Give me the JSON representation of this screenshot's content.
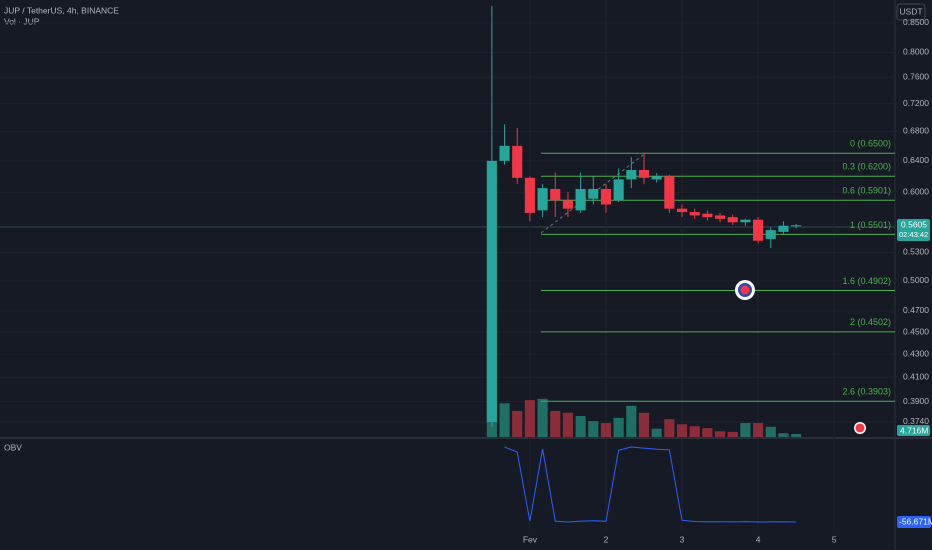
{
  "chart_data": {
    "type": "candlestick",
    "title": "JUP / TetherUS, 4h, BINANCE",
    "volume_label": "Vol · JUP",
    "currency_button": "USDT",
    "price_label": "0.5605",
    "countdown": "02:43:42",
    "log_scale": true,
    "up_color": "#26a69a",
    "down_color": "#f23645",
    "open": [
      0.374,
      0.64,
      0.66,
      0.618,
      0.578,
      0.604,
      0.59,
      0.578,
      0.592,
      0.604,
      0.59,
      0.616,
      0.628,
      0.616,
      0.62,
      0.58,
      0.576,
      0.574,
      0.572,
      0.57,
      0.564,
      0.567,
      0.545,
      0.553,
      0.5595
    ],
    "high": [
      0.88,
      0.69,
      0.685,
      0.62,
      0.61,
      0.625,
      0.6,
      0.625,
      0.62,
      0.61,
      0.63,
      0.645,
      0.65,
      0.624,
      0.622,
      0.585,
      0.58,
      0.578,
      0.575,
      0.573,
      0.568,
      0.57,
      0.558,
      0.565,
      0.562
    ],
    "low": [
      0.37,
      0.635,
      0.61,
      0.565,
      0.57,
      0.57,
      0.57,
      0.575,
      0.585,
      0.575,
      0.588,
      0.605,
      0.61,
      0.612,
      0.575,
      0.57,
      0.568,
      0.566,
      0.564,
      0.561,
      0.56,
      0.54,
      0.535,
      0.55,
      0.557
    ],
    "close": [
      0.64,
      0.66,
      0.618,
      0.575,
      0.605,
      0.59,
      0.58,
      0.604,
      0.604,
      0.585,
      0.616,
      0.628,
      0.618,
      0.62,
      0.58,
      0.576,
      0.572,
      0.57,
      0.568,
      0.564,
      0.567,
      0.543,
      0.555,
      0.56,
      0.5605
    ],
    "xlim": [
      -38.8,
      31.8
    ],
    "ylim": [
      0.3626,
      0.891
    ],
    "xticks": [
      {
        "value": 3,
        "label": "Fev"
      },
      {
        "value": 9,
        "label": "2"
      },
      {
        "value": 15,
        "label": "3"
      },
      {
        "value": 21,
        "label": "4"
      },
      {
        "value": 27,
        "label": "5"
      }
    ],
    "yticks": [
      {
        "value": 0.85,
        "label": "0.8500"
      },
      {
        "value": 0.8,
        "label": "0.8000"
      },
      {
        "value": 0.76,
        "label": "0.7600"
      },
      {
        "value": 0.72,
        "label": "0.7200"
      },
      {
        "value": 0.68,
        "label": "0.6800"
      },
      {
        "value": 0.64,
        "label": "0.6400"
      },
      {
        "value": 0.6,
        "label": "0.6000"
      },
      {
        "value": 0.53,
        "label": "0.5300"
      },
      {
        "value": 0.5,
        "label": "0.5000"
      },
      {
        "value": 0.47,
        "label": "0.4700"
      },
      {
        "value": 0.45,
        "label": "0.4500"
      },
      {
        "value": 0.43,
        "label": "0.4300"
      },
      {
        "value": 0.41,
        "label": "0.4100"
      },
      {
        "value": 0.39,
        "label": "0.3900"
      },
      {
        "value": 0.374,
        "label": "0.3740"
      }
    ],
    "volume": [
      171,
      53,
      41,
      58,
      60,
      41,
      38,
      33,
      25,
      22,
      30,
      49,
      38,
      13,
      28,
      20,
      17,
      14,
      9,
      8,
      22,
      22,
      16,
      6,
      4.716
    ],
    "volume_ylim": [
      0,
      275
    ],
    "volume_last_label": "4.716M",
    "fib_levels": [
      {
        "label": "0 (0.6500)",
        "value": 0.65
      },
      {
        "label": "0.3 (0.6200)",
        "value": 0.62
      },
      {
        "label": "0.6 (0.5901)",
        "value": 0.5901
      },
      {
        "label": "1 (0.5501)",
        "value": 0.5501
      },
      {
        "label": "1.6 (0.4902)",
        "value": 0.4902
      },
      {
        "label": "2 (0.4502)",
        "value": 0.4502
      },
      {
        "label": "2.6 (0.3903)",
        "value": 0.3903
      }
    ],
    "obv": {
      "name": "OBV",
      "color": "#2962ff",
      "values": [
        null,
        11.5,
        7,
        -55.8,
        9.7,
        -55.8,
        -56.7,
        -55.8,
        -55.5,
        -56,
        8.5,
        11.5,
        10.5,
        9.5,
        9,
        -55,
        -56.2,
        -56.4,
        -56.5,
        -56.6,
        -56.3,
        -56.7,
        -56.6,
        -56.5,
        -56.671
      ],
      "ylim": [
        -80.3,
        17.9
      ],
      "last_label": "-56.671M"
    }
  }
}
